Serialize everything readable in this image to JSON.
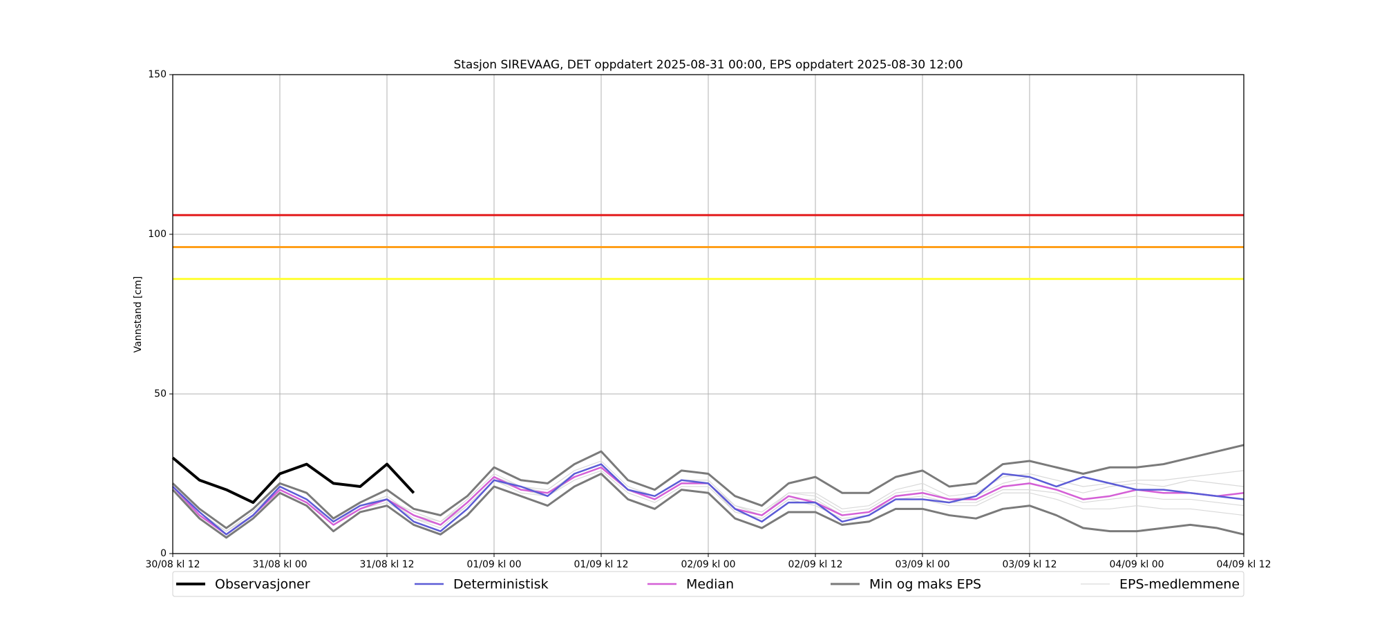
{
  "chart_data": {
    "type": "line",
    "title": "Stasjon SIREVAAG, DET oppdatert 2025-08-31 00:00, EPS oppdatert 2025-08-30 12:00",
    "ylabel": "Vannstand [cm]",
    "x": [
      0,
      3,
      6,
      9,
      12,
      15,
      18,
      21,
      24,
      27,
      30,
      33,
      36,
      39,
      42,
      45,
      48,
      51,
      54,
      57,
      60,
      63,
      66,
      69,
      72,
      75,
      78,
      81,
      84,
      87,
      90,
      93,
      96,
      99,
      102,
      105,
      108,
      111,
      114,
      117,
      120
    ],
    "xlim": [
      0,
      120
    ],
    "xticks": [
      {
        "value": 0,
        "label": "30/08 kl 12"
      },
      {
        "value": 12,
        "label": "31/08 kl 00"
      },
      {
        "value": 24,
        "label": "31/08 kl 12"
      },
      {
        "value": 36,
        "label": "01/09 kl 00"
      },
      {
        "value": 48,
        "label": "01/09 kl 12"
      },
      {
        "value": 60,
        "label": "02/09 kl 00"
      },
      {
        "value": 72,
        "label": "02/09 kl 12"
      },
      {
        "value": 84,
        "label": "03/09 kl 00"
      },
      {
        "value": 96,
        "label": "03/09 kl 12"
      },
      {
        "value": 108,
        "label": "04/09 kl 00"
      },
      {
        "value": 120,
        "label": "04/09 kl 12"
      }
    ],
    "ylim": [
      0,
      150
    ],
    "yticks": [
      0,
      50,
      100,
      150
    ],
    "grid": true,
    "thresholds": [
      {
        "value": 106,
        "color": "#e31a1c"
      },
      {
        "value": 96,
        "color": "#ff9f1a"
      },
      {
        "value": 86,
        "color": "#ffff33"
      }
    ],
    "members": {
      "name": "EPS-medlemmene",
      "color": "#d9d9d9",
      "values": [
        [
          21,
          12,
          7,
          13,
          21,
          17,
          10,
          15,
          18,
          12,
          10,
          17,
          25,
          21,
          20,
          26,
          29,
          21,
          18,
          23,
          23,
          15,
          13,
          19,
          19,
          14,
          15,
          20,
          22,
          18,
          19,
          24,
          25,
          23,
          21,
          22,
          23,
          23,
          24,
          25,
          26
        ],
        [
          21,
          12,
          6,
          12,
          20,
          16,
          9,
          14,
          16,
          11,
          8,
          15,
          23,
          19,
          18,
          23,
          26,
          19,
          16,
          21,
          21,
          13,
          11,
          17,
          15,
          11,
          12,
          17,
          17,
          15,
          15,
          19,
          19,
          17,
          14,
          14,
          15,
          14,
          14,
          13,
          12
        ],
        [
          21,
          13,
          7,
          12,
          21,
          17,
          9,
          15,
          17,
          13,
          10,
          16,
          24,
          21,
          19,
          25,
          28,
          20,
          18,
          23,
          22,
          15,
          12,
          19,
          18,
          13,
          14,
          19,
          20,
          17,
          18,
          22,
          24,
          21,
          19,
          21,
          22,
          21,
          23,
          22,
          21
        ],
        [
          20,
          12,
          6,
          12,
          20,
          16,
          9,
          14,
          17,
          11,
          9,
          15,
          23,
          20,
          18,
          24,
          27,
          20,
          17,
          22,
          22,
          13,
          11,
          17,
          17,
          12,
          13,
          17,
          18,
          16,
          16,
          20,
          20,
          19,
          16,
          17,
          18,
          17,
          17,
          16,
          15
        ]
      ]
    },
    "envelope": {
      "name": "Min og maks EPS",
      "color": "#7a7a7a",
      "min": [
        20,
        11,
        5,
        11,
        19,
        15,
        7,
        13,
        15,
        9,
        6,
        12,
        21,
        18,
        15,
        21,
        25,
        17,
        14,
        20,
        19,
        11,
        8,
        13,
        13,
        9,
        10,
        14,
        14,
        12,
        11,
        14,
        15,
        12,
        8,
        7,
        7,
        8,
        9,
        8,
        6
      ],
      "max": [
        22,
        14,
        8,
        14,
        22,
        19,
        11,
        16,
        20,
        14,
        12,
        18,
        27,
        23,
        22,
        28,
        32,
        23,
        20,
        26,
        25,
        18,
        15,
        22,
        24,
        19,
        19,
        24,
        26,
        21,
        22,
        28,
        29,
        27,
        25,
        27,
        27,
        28,
        30,
        32,
        34
      ]
    },
    "series": [
      {
        "name": "Observasjoner",
        "color": "#000000",
        "width": 4,
        "values": [
          30,
          23,
          20,
          16,
          25,
          28,
          22,
          21,
          28,
          19,
          null,
          null,
          null,
          null,
          null,
          null,
          null,
          null,
          null,
          null,
          null,
          null,
          null,
          null,
          null,
          null,
          null,
          null,
          null,
          null,
          null,
          null,
          null,
          null,
          null,
          null,
          null,
          null,
          null,
          null,
          null
        ]
      },
      {
        "name": "Deterministisk",
        "color": "#5b5bd6",
        "width": 2.5,
        "values": [
          21,
          13,
          6,
          12,
          21,
          17,
          10,
          15,
          17,
          10,
          7,
          14,
          23,
          21,
          18,
          25,
          28,
          20,
          18,
          23,
          22,
          14,
          10,
          16,
          16,
          10,
          12,
          17,
          17,
          16,
          18,
          25,
          24,
          21,
          24,
          22,
          20,
          20,
          19,
          18,
          17
        ]
      },
      {
        "name": "Median",
        "color": "#d45fd6",
        "width": 2.5,
        "values": [
          21,
          12,
          6,
          12,
          20,
          16,
          9,
          14,
          17,
          12,
          9,
          16,
          24,
          20,
          19,
          24,
          27,
          20,
          17,
          22,
          22,
          14,
          12,
          18,
          16,
          12,
          13,
          18,
          19,
          17,
          17,
          21,
          22,
          20,
          17,
          18,
          20,
          19,
          19,
          18,
          19
        ]
      }
    ]
  }
}
